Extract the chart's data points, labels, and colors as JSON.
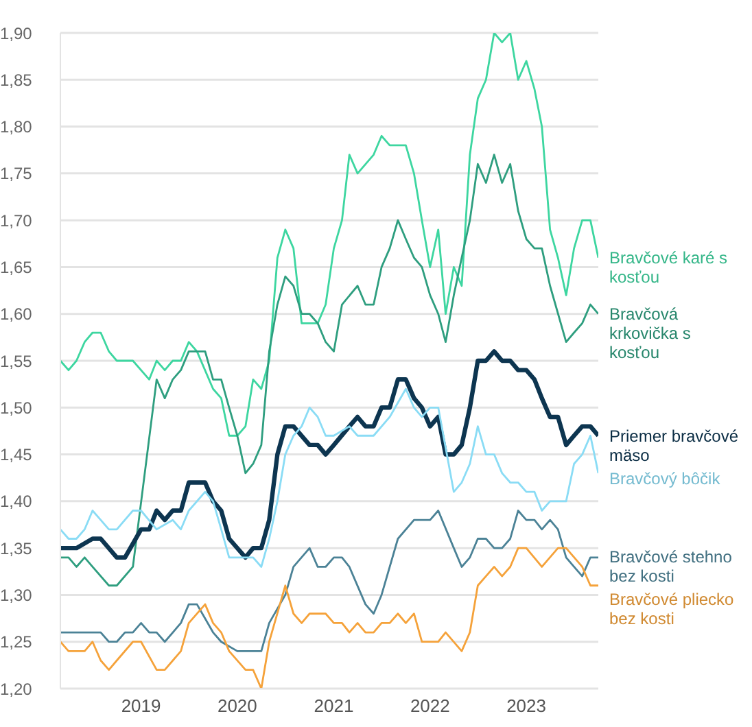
{
  "chart_data": {
    "type": "line",
    "grid": "y",
    "marker": "none",
    "line_style": "solid",
    "xlim": [
      "2018-03",
      "2023-10"
    ],
    "xticks": [
      "2019",
      "2020",
      "2021",
      "2022",
      "2023"
    ],
    "ylim": [
      1.2,
      1.9
    ],
    "yticks": [
      {
        "value": 1.2,
        "label": "1,20"
      },
      {
        "value": 1.25,
        "label": "1,25"
      },
      {
        "value": 1.3,
        "label": "1,30"
      },
      {
        "value": 1.35,
        "label": "1,35"
      },
      {
        "value": 1.4,
        "label": "1,40"
      },
      {
        "value": 1.45,
        "label": "1,45"
      },
      {
        "value": 1.5,
        "label": "1,50"
      },
      {
        "value": 1.55,
        "label": "1,55"
      },
      {
        "value": 1.6,
        "label": "1,60"
      },
      {
        "value": 1.65,
        "label": "1,65"
      },
      {
        "value": 1.7,
        "label": "1,70"
      },
      {
        "value": 1.75,
        "label": "1,75"
      },
      {
        "value": 1.8,
        "label": "1,80"
      },
      {
        "value": 1.85,
        "label": "1,85"
      },
      {
        "value": 1.9,
        "label": "1,90"
      }
    ],
    "series": [
      {
        "name": "Bravčové karé s kosťou",
        "color": "#3dd6a0",
        "x": [
          "2018-03",
          "2018-04",
          "2018-05",
          "2018-06",
          "2018-07",
          "2018-08",
          "2018-09",
          "2018-10",
          "2018-12",
          "2019-02",
          "2019-03",
          "2019-04",
          "2019-05",
          "2019-06",
          "2019-07",
          "2019-08",
          "2019-10",
          "2019-11",
          "2019-12",
          "2020-01",
          "2020-02",
          "2020-03",
          "2020-04",
          "2020-05",
          "2020-06",
          "2020-07",
          "2020-08",
          "2020-09",
          "2020-11",
          "2020-12",
          "2021-01",
          "2021-02",
          "2021-03",
          "2021-04",
          "2021-06",
          "2021-07",
          "2021-08",
          "2021-10",
          "2021-11",
          "2021-12",
          "2022-01",
          "2022-02",
          "2022-03",
          "2022-04",
          "2022-05",
          "2022-06",
          "2022-07",
          "2022-08",
          "2022-09",
          "2022-10",
          "2022-11",
          "2022-12",
          "2023-01",
          "2023-02",
          "2023-03",
          "2023-04",
          "2023-05",
          "2023-06",
          "2023-07",
          "2023-08",
          "2023-09",
          "2023-10"
        ],
        "values": [
          1.55,
          1.54,
          1.55,
          1.57,
          1.58,
          1.58,
          1.56,
          1.55,
          1.55,
          1.53,
          1.55,
          1.54,
          1.55,
          1.55,
          1.57,
          1.56,
          1.52,
          1.51,
          1.47,
          1.47,
          1.48,
          1.53,
          1.52,
          1.55,
          1.66,
          1.69,
          1.67,
          1.59,
          1.59,
          1.61,
          1.67,
          1.7,
          1.77,
          1.75,
          1.77,
          1.79,
          1.78,
          1.78,
          1.75,
          1.7,
          1.65,
          1.69,
          1.6,
          1.65,
          1.63,
          1.77,
          1.83,
          1.85,
          1.9,
          1.89,
          1.9,
          1.85,
          1.87,
          1.84,
          1.8,
          1.69,
          1.66,
          1.62,
          1.67,
          1.7,
          1.7,
          1.66
        ]
      },
      {
        "name": "Bravčová krkovička s kosťou",
        "color": "#2e9e7f",
        "x": [
          "2018-03",
          "2018-04",
          "2018-05",
          "2018-06",
          "2018-07",
          "2018-09",
          "2018-10",
          "2018-12",
          "2019-03",
          "2019-04",
          "2019-05",
          "2019-06",
          "2019-07",
          "2019-09",
          "2019-10",
          "2019-11",
          "2019-12",
          "2020-01",
          "2020-02",
          "2020-03",
          "2020-04",
          "2020-05",
          "2020-06",
          "2020-07",
          "2020-08",
          "2020-09",
          "2020-10",
          "2020-11",
          "2020-12",
          "2021-01",
          "2021-02",
          "2021-04",
          "2021-05",
          "2021-06",
          "2021-07",
          "2021-08",
          "2021-09",
          "2021-10",
          "2021-11",
          "2021-12",
          "2022-01",
          "2022-02",
          "2022-03",
          "2022-04",
          "2022-05",
          "2022-06",
          "2022-07",
          "2022-08",
          "2022-09",
          "2022-10",
          "2022-11",
          "2022-12",
          "2023-01",
          "2023-02",
          "2023-03",
          "2023-04",
          "2023-06",
          "2023-07",
          "2023-08",
          "2023-09",
          "2023-10"
        ],
        "values": [
          1.34,
          1.34,
          1.33,
          1.34,
          1.33,
          1.31,
          1.31,
          1.33,
          1.53,
          1.51,
          1.53,
          1.54,
          1.56,
          1.56,
          1.53,
          1.53,
          1.5,
          1.47,
          1.43,
          1.44,
          1.46,
          1.56,
          1.61,
          1.64,
          1.63,
          1.6,
          1.6,
          1.59,
          1.57,
          1.56,
          1.61,
          1.63,
          1.61,
          1.61,
          1.65,
          1.67,
          1.7,
          1.68,
          1.66,
          1.65,
          1.62,
          1.6,
          1.57,
          1.62,
          1.66,
          1.7,
          1.76,
          1.74,
          1.77,
          1.74,
          1.76,
          1.71,
          1.68,
          1.67,
          1.67,
          1.63,
          1.57,
          1.58,
          1.59,
          1.61,
          1.6
        ]
      },
      {
        "name": "Priemer bravčové mäso",
        "color": "#0d3550",
        "x": [
          "2018-03",
          "2018-05",
          "2018-07",
          "2018-08",
          "2018-10",
          "2018-11",
          "2019-01",
          "2019-02",
          "2019-03",
          "2019-04",
          "2019-05",
          "2019-06",
          "2019-07",
          "2019-09",
          "2019-10",
          "2019-11",
          "2019-12",
          "2020-02",
          "2020-03",
          "2020-04",
          "2020-05",
          "2020-06",
          "2020-07",
          "2020-08",
          "2020-10",
          "2020-11",
          "2020-12",
          "2021-01",
          "2021-03",
          "2021-04",
          "2021-05",
          "2021-06",
          "2021-07",
          "2021-08",
          "2021-09",
          "2021-10",
          "2021-11",
          "2021-12",
          "2022-01",
          "2022-02",
          "2022-03",
          "2022-04",
          "2022-05",
          "2022-06",
          "2022-07",
          "2022-08",
          "2022-09",
          "2022-10",
          "2022-11",
          "2022-12",
          "2023-01",
          "2023-02",
          "2023-03",
          "2023-04",
          "2023-05",
          "2023-06",
          "2023-07",
          "2023-08",
          "2023-09",
          "2023-10"
        ],
        "values": [
          1.35,
          1.35,
          1.36,
          1.36,
          1.34,
          1.34,
          1.37,
          1.37,
          1.39,
          1.38,
          1.39,
          1.39,
          1.42,
          1.42,
          1.4,
          1.39,
          1.36,
          1.34,
          1.35,
          1.35,
          1.38,
          1.45,
          1.48,
          1.48,
          1.46,
          1.46,
          1.45,
          1.46,
          1.48,
          1.49,
          1.48,
          1.48,
          1.5,
          1.5,
          1.53,
          1.53,
          1.51,
          1.5,
          1.48,
          1.49,
          1.45,
          1.45,
          1.46,
          1.5,
          1.55,
          1.55,
          1.56,
          1.55,
          1.55,
          1.54,
          1.54,
          1.53,
          1.51,
          1.49,
          1.49,
          1.46,
          1.47,
          1.48,
          1.48,
          1.47
        ]
      },
      {
        "name": "Bravčový bôčik",
        "color": "#8adcf5",
        "x": [
          "2018-03",
          "2018-04",
          "2018-05",
          "2018-06",
          "2018-07",
          "2018-08",
          "2018-09",
          "2018-10",
          "2018-12",
          "2019-01",
          "2019-03",
          "2019-05",
          "2019-06",
          "2019-07",
          "2019-09",
          "2019-10",
          "2019-11",
          "2019-12",
          "2020-02",
          "2020-03",
          "2020-04",
          "2020-05",
          "2020-06",
          "2020-07",
          "2020-08",
          "2020-09",
          "2020-10",
          "2020-11",
          "2020-12",
          "2021-01",
          "2021-03",
          "2021-04",
          "2021-06",
          "2021-08",
          "2021-10",
          "2021-11",
          "2021-12",
          "2022-01",
          "2022-02",
          "2022-04",
          "2022-05",
          "2022-06",
          "2022-07",
          "2022-08",
          "2022-09",
          "2022-10",
          "2022-11",
          "2022-12",
          "2023-01",
          "2023-02",
          "2023-03",
          "2023-04",
          "2023-06",
          "2023-07",
          "2023-08",
          "2023-09",
          "2023-10"
        ],
        "values": [
          1.37,
          1.36,
          1.36,
          1.37,
          1.39,
          1.38,
          1.37,
          1.37,
          1.39,
          1.39,
          1.37,
          1.38,
          1.37,
          1.39,
          1.41,
          1.4,
          1.37,
          1.34,
          1.34,
          1.34,
          1.33,
          1.36,
          1.4,
          1.45,
          1.47,
          1.48,
          1.5,
          1.49,
          1.47,
          1.47,
          1.48,
          1.47,
          1.47,
          1.49,
          1.52,
          1.5,
          1.49,
          1.5,
          1.5,
          1.41,
          1.42,
          1.44,
          1.48,
          1.45,
          1.45,
          1.43,
          1.42,
          1.42,
          1.41,
          1.41,
          1.39,
          1.4,
          1.4,
          1.44,
          1.45,
          1.47,
          1.43
        ]
      },
      {
        "name": "Bravčové stehno bez kosti",
        "color": "#4b8296",
        "x": [
          "2018-03",
          "2018-08",
          "2018-09",
          "2018-10",
          "2018-11",
          "2018-12",
          "2019-01",
          "2019-02",
          "2019-03",
          "2019-04",
          "2019-06",
          "2019-07",
          "2019-08",
          "2019-10",
          "2019-11",
          "2020-01",
          "2020-04",
          "2020-05",
          "2020-07",
          "2020-08",
          "2020-10",
          "2020-11",
          "2020-12",
          "2021-01",
          "2021-02",
          "2021-03",
          "2021-05",
          "2021-06",
          "2021-07",
          "2021-09",
          "2021-11",
          "2022-01",
          "2022-02",
          "2022-04",
          "2022-05",
          "2022-06",
          "2022-07",
          "2022-08",
          "2022-09",
          "2022-10",
          "2022-11",
          "2022-12",
          "2023-01",
          "2023-02",
          "2023-03",
          "2023-04",
          "2023-05",
          "2023-06",
          "2023-07",
          "2023-08",
          "2023-09",
          "2023-10"
        ],
        "values": [
          1.26,
          1.26,
          1.25,
          1.25,
          1.26,
          1.26,
          1.27,
          1.26,
          1.26,
          1.25,
          1.27,
          1.29,
          1.29,
          1.26,
          1.25,
          1.24,
          1.24,
          1.27,
          1.3,
          1.33,
          1.35,
          1.33,
          1.33,
          1.34,
          1.34,
          1.33,
          1.29,
          1.28,
          1.3,
          1.36,
          1.38,
          1.38,
          1.39,
          1.35,
          1.33,
          1.34,
          1.36,
          1.36,
          1.35,
          1.35,
          1.36,
          1.39,
          1.38,
          1.38,
          1.37,
          1.38,
          1.37,
          1.34,
          1.33,
          1.32,
          1.34,
          1.34
        ]
      },
      {
        "name": "Bravčové pliecko bez kosti",
        "color": "#f5a23a",
        "x": [
          "2018-03",
          "2018-04",
          "2018-06",
          "2018-07",
          "2018-08",
          "2018-09",
          "2018-10",
          "2018-12",
          "2019-01",
          "2019-03",
          "2019-04",
          "2019-06",
          "2019-07",
          "2019-09",
          "2019-10",
          "2019-11",
          "2019-12",
          "2020-02",
          "2020-03",
          "2020-04",
          "2020-05",
          "2020-07",
          "2020-08",
          "2020-09",
          "2020-10",
          "2020-12",
          "2021-01",
          "2021-02",
          "2021-03",
          "2021-04",
          "2021-05",
          "2021-06",
          "2021-07",
          "2021-08",
          "2021-09",
          "2021-10",
          "2021-11",
          "2021-12",
          "2022-02",
          "2022-03",
          "2022-05",
          "2022-06",
          "2022-07",
          "2022-08",
          "2022-09",
          "2022-10",
          "2022-11",
          "2022-12",
          "2023-01",
          "2023-03",
          "2023-05",
          "2023-06",
          "2023-08",
          "2023-09",
          "2023-10"
        ],
        "values": [
          1.25,
          1.24,
          1.24,
          1.25,
          1.23,
          1.22,
          1.23,
          1.25,
          1.25,
          1.22,
          1.22,
          1.24,
          1.27,
          1.29,
          1.27,
          1.26,
          1.24,
          1.22,
          1.22,
          1.2,
          1.25,
          1.31,
          1.28,
          1.27,
          1.28,
          1.28,
          1.27,
          1.27,
          1.26,
          1.27,
          1.26,
          1.26,
          1.27,
          1.27,
          1.28,
          1.27,
          1.28,
          1.25,
          1.25,
          1.26,
          1.24,
          1.26,
          1.31,
          1.32,
          1.33,
          1.32,
          1.33,
          1.35,
          1.35,
          1.33,
          1.35,
          1.35,
          1.33,
          1.31,
          1.31
        ]
      }
    ]
  }
}
